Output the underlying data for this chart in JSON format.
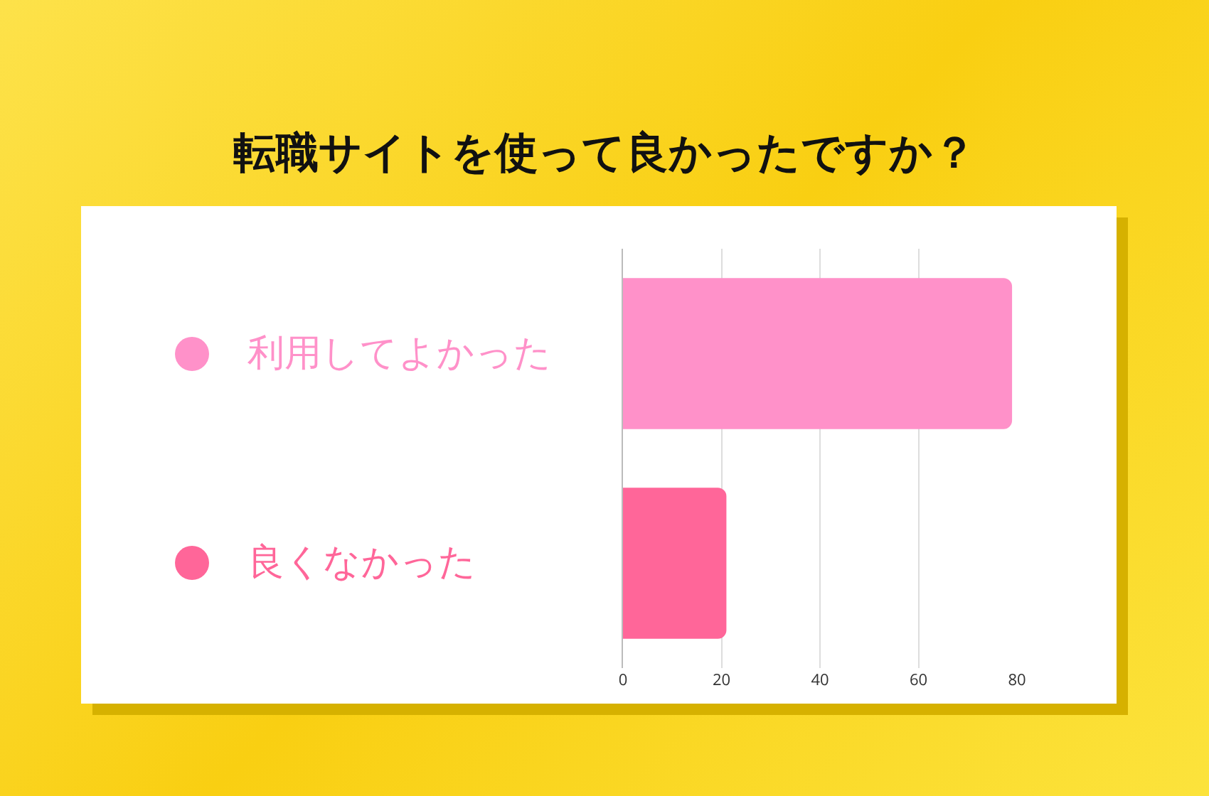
{
  "chart_data": {
    "type": "bar",
    "orientation": "horizontal",
    "title": "転職サイトを使って良かったですか？",
    "categories": [
      "利用してよかった",
      "良くなかった"
    ],
    "values": [
      79,
      21
    ],
    "colors": [
      "#ff91c9",
      "#ff6699"
    ],
    "xlim": [
      0,
      80
    ],
    "xticks": [
      0,
      20,
      40,
      60,
      80
    ],
    "grid": "x",
    "legend": false
  }
}
